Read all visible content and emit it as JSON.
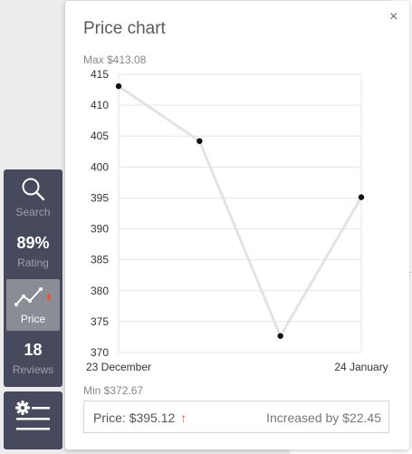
{
  "sidebar": {
    "search_label": "Search",
    "rating_value": "89%",
    "rating_label": "Rating",
    "price_label": "Price",
    "reviews_value": "18",
    "reviews_label": "Reviews"
  },
  "popup": {
    "title": "Price chart",
    "close_glyph": "×",
    "max_label": "Max $413.08",
    "min_label": "Min $372.67"
  },
  "summary": {
    "price_text": "Price: $395.12",
    "arrow": "↑",
    "change_text": "Increased by $22.45"
  },
  "colors": {
    "sidebar_bg": "#474a5c",
    "sidebar_active": "#8a8c96",
    "trend_up": "#e6553a",
    "line": "#e3e3e3"
  },
  "chart_data": {
    "type": "line",
    "title": "",
    "xlabel": "",
    "ylabel": "",
    "x_tick_labels": [
      "23 December",
      "24 January"
    ],
    "y_ticks": [
      370,
      375,
      380,
      385,
      390,
      395,
      400,
      405,
      410,
      415
    ],
    "ylim": [
      370,
      415
    ],
    "grid": true,
    "series": [
      {
        "values": [
          413.08,
          404.2,
          372.67,
          395.12
        ]
      }
    ]
  }
}
